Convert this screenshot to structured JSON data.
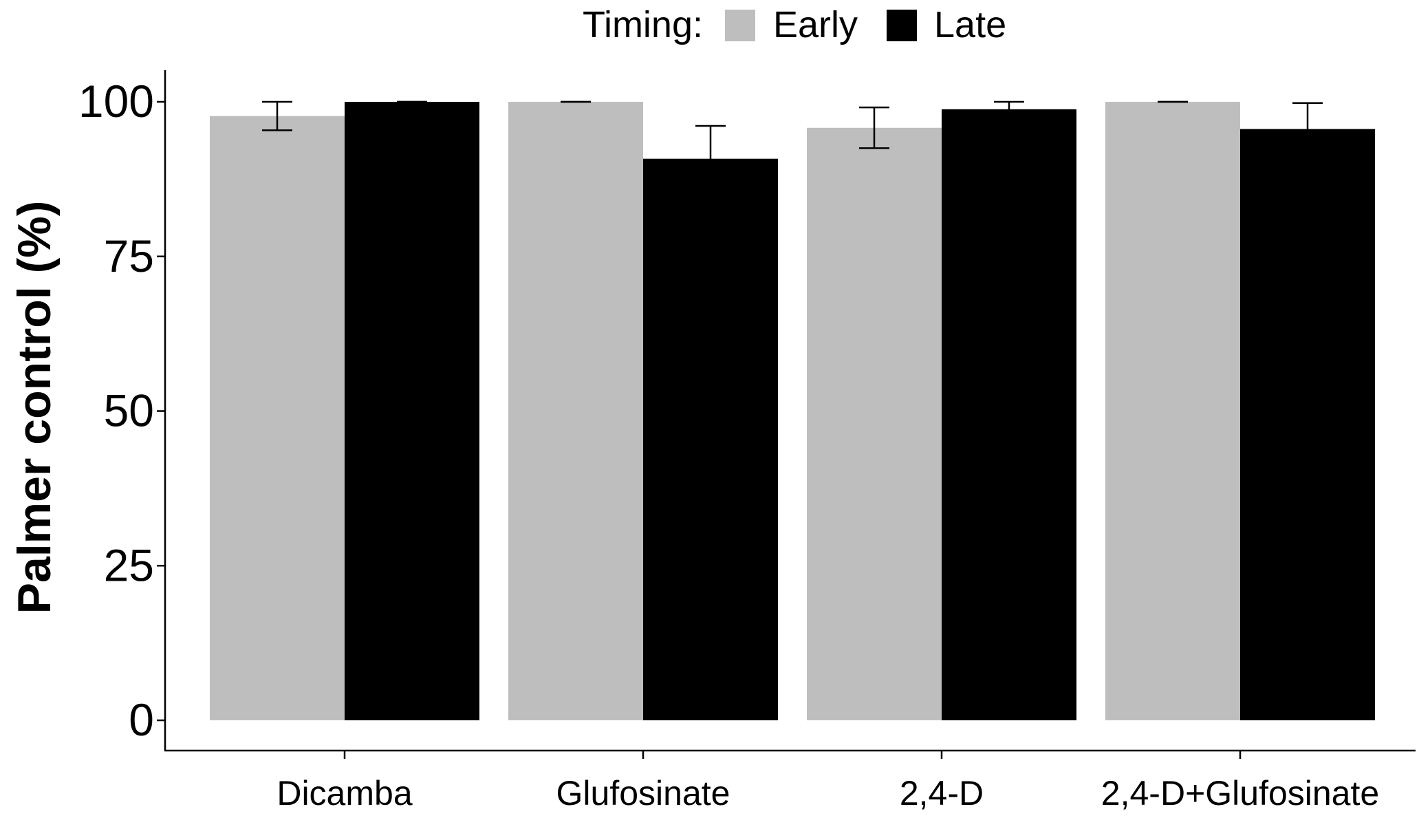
{
  "chart_data": {
    "type": "bar",
    "title": "",
    "xlabel": "",
    "ylabel": "Palmer control (%)",
    "ylim": [
      0,
      100
    ],
    "yticks": [
      0,
      25,
      50,
      75,
      100
    ],
    "categories": [
      "Dicamba",
      "Glufosinate",
      "2,4-D",
      "2,4-D+Glufosinate"
    ],
    "legend": {
      "title": "Timing:",
      "position": "top"
    },
    "series": [
      {
        "name": "Early",
        "color": "#bebebe",
        "values": [
          97.7,
          100,
          95.8,
          100
        ],
        "errors": [
          2.3,
          0,
          3.3,
          0
        ]
      },
      {
        "name": "Late",
        "color": "#000000",
        "values": [
          100,
          90.8,
          98.8,
          95.6
        ],
        "errors": [
          0,
          5.3,
          1.2,
          4.2
        ]
      }
    ],
    "grid": false
  }
}
